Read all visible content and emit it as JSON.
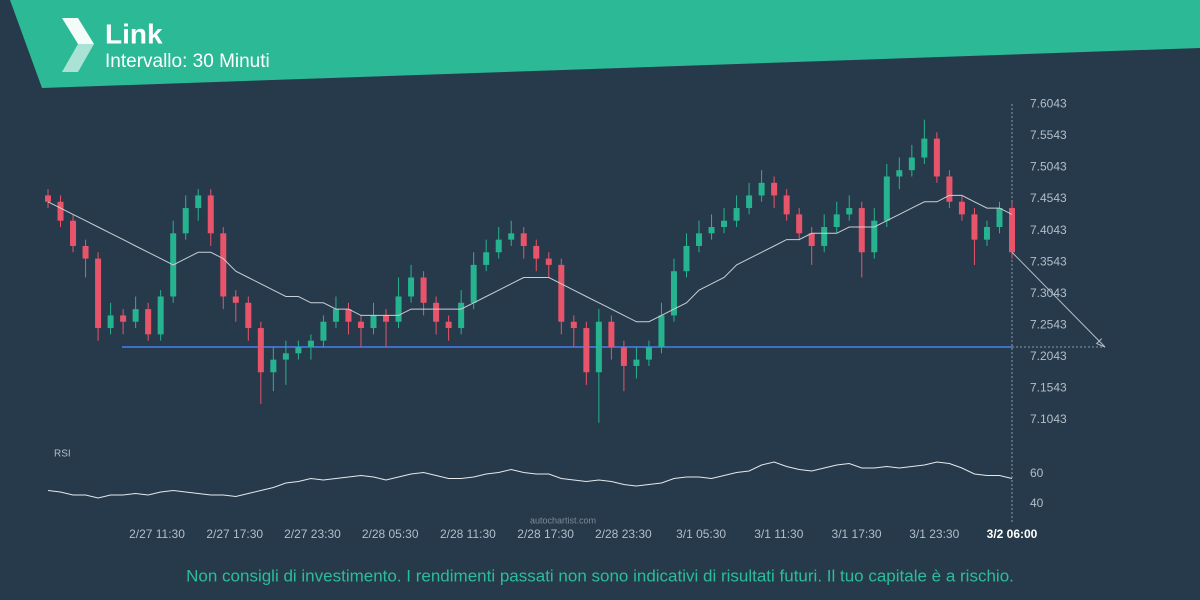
{
  "header": {
    "title": "Link",
    "subtitle": "Intervallo: 30 Minuti"
  },
  "chart_data": {
    "type": "candlestick",
    "up_color": "#26b38f",
    "down_color": "#e8546a",
    "candles": [
      [
        7.46,
        7.47,
        7.44,
        7.45
      ],
      [
        7.45,
        7.46,
        7.41,
        7.42
      ],
      [
        7.42,
        7.43,
        7.37,
        7.38
      ],
      [
        7.38,
        7.39,
        7.33,
        7.36
      ],
      [
        7.36,
        7.37,
        7.23,
        7.25
      ],
      [
        7.25,
        7.29,
        7.24,
        7.27
      ],
      [
        7.27,
        7.28,
        7.24,
        7.26
      ],
      [
        7.26,
        7.3,
        7.25,
        7.28
      ],
      [
        7.28,
        7.29,
        7.23,
        7.24
      ],
      [
        7.24,
        7.31,
        7.23,
        7.3
      ],
      [
        7.3,
        7.42,
        7.29,
        7.4
      ],
      [
        7.4,
        7.46,
        7.39,
        7.44
      ],
      [
        7.44,
        7.47,
        7.42,
        7.46
      ],
      [
        7.46,
        7.47,
        7.38,
        7.4
      ],
      [
        7.4,
        7.41,
        7.28,
        7.3
      ],
      [
        7.3,
        7.31,
        7.26,
        7.29
      ],
      [
        7.29,
        7.3,
        7.23,
        7.25
      ],
      [
        7.25,
        7.26,
        7.13,
        7.18
      ],
      [
        7.18,
        7.22,
        7.15,
        7.2
      ],
      [
        7.2,
        7.23,
        7.16,
        7.21
      ],
      [
        7.21,
        7.23,
        7.2,
        7.22
      ],
      [
        7.22,
        7.24,
        7.2,
        7.23
      ],
      [
        7.23,
        7.27,
        7.22,
        7.26
      ],
      [
        7.26,
        7.3,
        7.25,
        7.28
      ],
      [
        7.28,
        7.29,
        7.24,
        7.26
      ],
      [
        7.26,
        7.27,
        7.22,
        7.25
      ],
      [
        7.25,
        7.29,
        7.24,
        7.27
      ],
      [
        7.27,
        7.28,
        7.22,
        7.26
      ],
      [
        7.26,
        7.33,
        7.25,
        7.3
      ],
      [
        7.3,
        7.35,
        7.29,
        7.33
      ],
      [
        7.33,
        7.34,
        7.27,
        7.29
      ],
      [
        7.29,
        7.3,
        7.24,
        7.26
      ],
      [
        7.26,
        7.27,
        7.23,
        7.25
      ],
      [
        7.25,
        7.31,
        7.24,
        7.29
      ],
      [
        7.29,
        7.37,
        7.28,
        7.35
      ],
      [
        7.35,
        7.39,
        7.34,
        7.37
      ],
      [
        7.37,
        7.41,
        7.36,
        7.39
      ],
      [
        7.39,
        7.42,
        7.38,
        7.4
      ],
      [
        7.4,
        7.41,
        7.36,
        7.38
      ],
      [
        7.38,
        7.39,
        7.34,
        7.36
      ],
      [
        7.36,
        7.37,
        7.33,
        7.35
      ],
      [
        7.35,
        7.36,
        7.24,
        7.26
      ],
      [
        7.26,
        7.27,
        7.22,
        7.25
      ],
      [
        7.25,
        7.26,
        7.16,
        7.18
      ],
      [
        7.18,
        7.28,
        7.1,
        7.26
      ],
      [
        7.26,
        7.27,
        7.2,
        7.22
      ],
      [
        7.22,
        7.23,
        7.15,
        7.19
      ],
      [
        7.19,
        7.22,
        7.17,
        7.2
      ],
      [
        7.2,
        7.23,
        7.19,
        7.22
      ],
      [
        7.22,
        7.29,
        7.21,
        7.27
      ],
      [
        7.27,
        7.36,
        7.26,
        7.34
      ],
      [
        7.34,
        7.4,
        7.33,
        7.38
      ],
      [
        7.38,
        7.42,
        7.37,
        7.4
      ],
      [
        7.4,
        7.43,
        7.39,
        7.41
      ],
      [
        7.41,
        7.44,
        7.4,
        7.42
      ],
      [
        7.42,
        7.46,
        7.41,
        7.44
      ],
      [
        7.44,
        7.48,
        7.43,
        7.46
      ],
      [
        7.46,
        7.5,
        7.45,
        7.48
      ],
      [
        7.48,
        7.49,
        7.44,
        7.46
      ],
      [
        7.46,
        7.47,
        7.42,
        7.43
      ],
      [
        7.43,
        7.44,
        7.39,
        7.4
      ],
      [
        7.4,
        7.41,
        7.35,
        7.38
      ],
      [
        7.38,
        7.43,
        7.37,
        7.41
      ],
      [
        7.41,
        7.45,
        7.4,
        7.43
      ],
      [
        7.43,
        7.46,
        7.42,
        7.44
      ],
      [
        7.44,
        7.45,
        7.33,
        7.37
      ],
      [
        7.37,
        7.44,
        7.36,
        7.42
      ],
      [
        7.42,
        7.51,
        7.41,
        7.49
      ],
      [
        7.49,
        7.52,
        7.47,
        7.5
      ],
      [
        7.5,
        7.54,
        7.49,
        7.52
      ],
      [
        7.52,
        7.58,
        7.51,
        7.55
      ],
      [
        7.55,
        7.56,
        7.48,
        7.49
      ],
      [
        7.49,
        7.5,
        7.44,
        7.45
      ],
      [
        7.45,
        7.46,
        7.42,
        7.43
      ],
      [
        7.43,
        7.44,
        7.35,
        7.39
      ],
      [
        7.39,
        7.42,
        7.38,
        7.41
      ],
      [
        7.41,
        7.45,
        7.4,
        7.44
      ],
      [
        7.44,
        7.45,
        7.36,
        7.37
      ]
    ],
    "ylim": [
      7.0743,
      7.6143
    ],
    "yticks": [
      7.6043,
      7.5543,
      7.5043,
      7.4543,
      7.4043,
      7.3543,
      7.3043,
      7.2543,
      7.2043,
      7.1543,
      7.1043
    ],
    "xlabels": [
      "2/27 11:30",
      "2/27 17:30",
      "2/27 23:30",
      "2/28 05:30",
      "2/28 11:30",
      "2/28 17:30",
      "2/28 23:30",
      "3/1 05:30",
      "3/1 11:30",
      "3/1 17:30",
      "3/1 23:30",
      "3/2 06:00"
    ],
    "ma": {
      "color": "#c9cfd5",
      "values": [
        7.45,
        7.44,
        7.43,
        7.42,
        7.41,
        7.4,
        7.39,
        7.38,
        7.37,
        7.36,
        7.35,
        7.36,
        7.37,
        7.37,
        7.36,
        7.34,
        7.33,
        7.32,
        7.31,
        7.3,
        7.3,
        7.29,
        7.29,
        7.28,
        7.28,
        7.27,
        7.27,
        7.27,
        7.27,
        7.28,
        7.28,
        7.28,
        7.28,
        7.28,
        7.29,
        7.3,
        7.31,
        7.32,
        7.33,
        7.33,
        7.33,
        7.32,
        7.31,
        7.3,
        7.29,
        7.28,
        7.27,
        7.26,
        7.26,
        7.27,
        7.28,
        7.29,
        7.31,
        7.32,
        7.33,
        7.35,
        7.36,
        7.37,
        7.38,
        7.39,
        7.39,
        7.4,
        7.4,
        7.4,
        7.41,
        7.41,
        7.41,
        7.42,
        7.43,
        7.44,
        7.45,
        7.45,
        7.46,
        7.46,
        7.45,
        7.44,
        7.44,
        7.43
      ]
    },
    "support": {
      "value": 7.22,
      "color": "#3d6fc4"
    },
    "rsi": {
      "label": "RSI",
      "color": "#e6e9ec",
      "ylim": [
        30,
        80
      ],
      "yticks": [
        60,
        40
      ],
      "values": [
        49,
        48,
        46,
        46,
        44,
        46,
        46,
        47,
        46,
        48,
        49,
        48,
        47,
        46,
        46,
        45,
        47,
        49,
        51,
        54,
        55,
        57,
        56,
        57,
        58,
        59,
        58,
        56,
        58,
        60,
        61,
        59,
        57,
        57,
        58,
        60,
        61,
        63,
        61,
        60,
        60,
        57,
        56,
        55,
        56,
        55,
        53,
        52,
        53,
        54,
        57,
        58,
        58,
        57,
        59,
        61,
        62,
        66,
        68,
        65,
        63,
        62,
        64,
        66,
        67,
        64,
        64,
        65,
        64,
        65,
        66,
        68,
        67,
        64,
        60,
        59,
        59,
        57
      ]
    },
    "watermark": "autochartist.com"
  },
  "footer": "Non consigli di investimento. I rendimenti passati non sono indicativi di risultati futuri. Il tuo capitale è a rischio."
}
